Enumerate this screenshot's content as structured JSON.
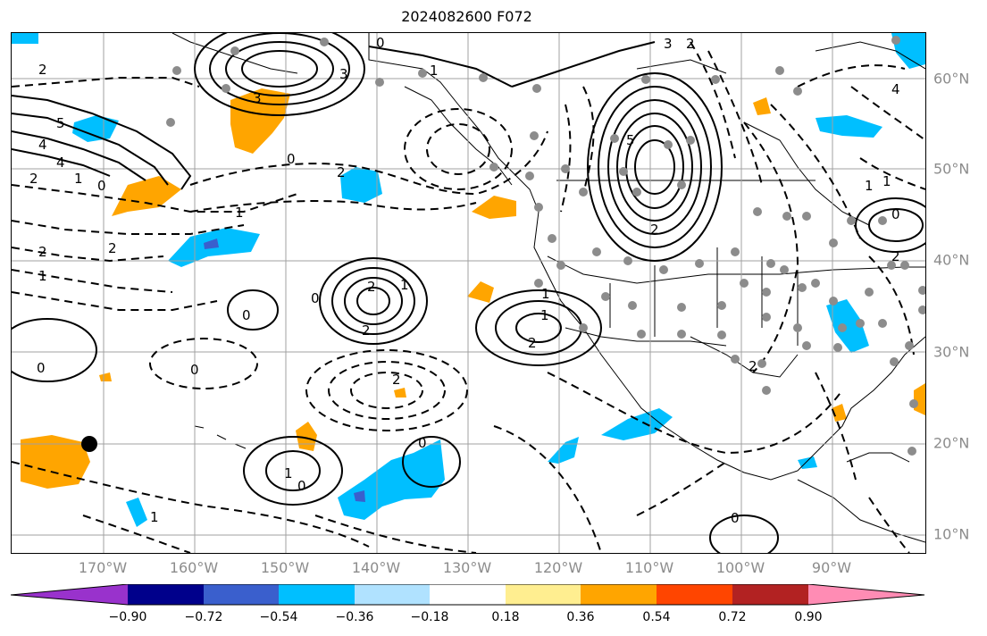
{
  "title": "2024082600 F072",
  "map": {
    "lon_labels": [
      "170°W",
      "160°W",
      "150°W",
      "140°W",
      "130°W",
      "120°W",
      "110°W",
      "100°W",
      "90°W"
    ],
    "lat_labels": [
      "60°N",
      "50°N",
      "40°N",
      "30°N",
      "20°N",
      "10°N"
    ],
    "contour_labels": [
      "0",
      "2",
      "1",
      "3",
      "5",
      "4",
      "2",
      "1",
      "0",
      "2",
      "1",
      "2",
      "1",
      "0",
      "2",
      "0",
      "2",
      "1",
      "2",
      "0",
      "1",
      "2",
      "0",
      "1",
      "0",
      "0",
      "2",
      "5",
      "4",
      "3",
      "2",
      "1",
      "0",
      "2",
      "1",
      "0",
      "1",
      "0",
      "2",
      "4",
      "3",
      "2",
      "1"
    ],
    "gridline_color": "#a0a0a0",
    "contour_color": "#000000"
  },
  "colorbar": {
    "ticks": [
      "−0.90",
      "−0.72",
      "−0.54",
      "−0.36",
      "−0.18",
      "0.18",
      "0.36",
      "0.54",
      "0.72",
      "0.90"
    ],
    "colors": [
      "#9932cc",
      "#00008b",
      "#3a5fcd",
      "#00bfff",
      "#b0e2ff",
      "#ffffff",
      "#ffee90",
      "#ffa500",
      "#ff4500",
      "#b22222",
      "#ff8cb4"
    ]
  }
}
